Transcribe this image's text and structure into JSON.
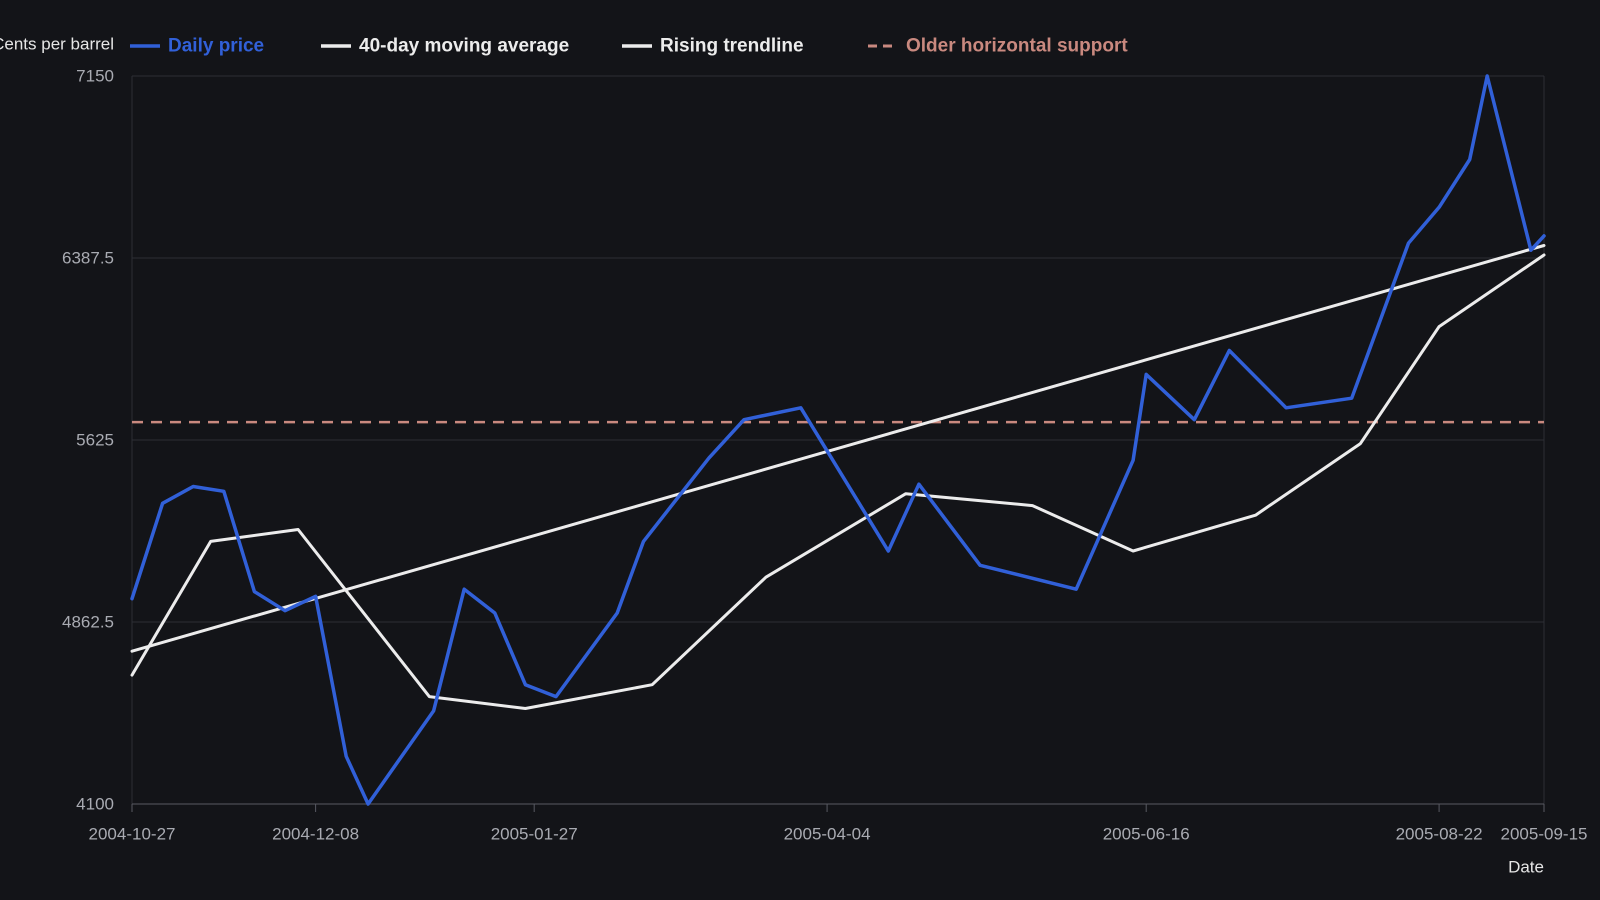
{
  "chart_data": {
    "type": "line",
    "title": "",
    "xlabel": "Date",
    "ylabel": "Cents per barrel",
    "ylim": [
      4100,
      7150
    ],
    "y_ticks": [
      "4100",
      "4862.5",
      "5625",
      "6387.5",
      "7150"
    ],
    "x_ticks": [
      {
        "date": "2004-10-27",
        "label": "2004-10-27"
      },
      {
        "date": "2004-12-08",
        "label": "2004-12-08"
      },
      {
        "date": "2005-01-27",
        "label": "2005-01-27"
      },
      {
        "date": "2005-04-04",
        "label": "2005-04-04"
      },
      {
        "date": "2005-06-16",
        "label": "2005-06-16"
      },
      {
        "date": "2005-08-22",
        "label": "2005-08-22"
      },
      {
        "date": "2005-09-15",
        "label": "2005-09-15"
      }
    ],
    "xlim": [
      "2004-10-27",
      "2005-09-15"
    ],
    "grid": true,
    "legend_position": "top",
    "series": [
      {
        "name": "Daily price",
        "color": "#3160d8",
        "style": "solid",
        "points": [
          {
            "x": "2004-10-27",
            "y": 4960
          },
          {
            "x": "2004-11-03",
            "y": 5360
          },
          {
            "x": "2004-11-10",
            "y": 5430
          },
          {
            "x": "2004-11-17",
            "y": 5410
          },
          {
            "x": "2004-11-24",
            "y": 4990
          },
          {
            "x": "2004-12-01",
            "y": 4910
          },
          {
            "x": "2004-12-08",
            "y": 4970
          },
          {
            "x": "2004-12-15",
            "y": 4300
          },
          {
            "x": "2004-12-20",
            "y": 4100
          },
          {
            "x": "2005-01-04",
            "y": 4490
          },
          {
            "x": "2005-01-11",
            "y": 5000
          },
          {
            "x": "2005-01-18",
            "y": 4900
          },
          {
            "x": "2005-01-25",
            "y": 4600
          },
          {
            "x": "2005-02-01",
            "y": 4550
          },
          {
            "x": "2005-02-15",
            "y": 4900
          },
          {
            "x": "2005-02-21",
            "y": 5200
          },
          {
            "x": "2005-03-08",
            "y": 5550
          },
          {
            "x": "2005-03-16",
            "y": 5710
          },
          {
            "x": "2005-03-29",
            "y": 5760
          },
          {
            "x": "2005-04-18",
            "y": 5160
          },
          {
            "x": "2005-04-25",
            "y": 5440
          },
          {
            "x": "2005-05-09",
            "y": 5100
          },
          {
            "x": "2005-05-31",
            "y": 5000
          },
          {
            "x": "2005-06-13",
            "y": 5540
          },
          {
            "x": "2005-06-16",
            "y": 5900
          },
          {
            "x": "2005-06-27",
            "y": 5710
          },
          {
            "x": "2005-07-05",
            "y": 6000
          },
          {
            "x": "2005-07-18",
            "y": 5760
          },
          {
            "x": "2005-08-02",
            "y": 5800
          },
          {
            "x": "2005-08-15",
            "y": 6450
          },
          {
            "x": "2005-08-22",
            "y": 6600
          },
          {
            "x": "2005-08-29",
            "y": 6800
          },
          {
            "x": "2005-09-02",
            "y": 7150
          },
          {
            "x": "2005-09-12",
            "y": 6420
          },
          {
            "x": "2005-09-15",
            "y": 6480
          }
        ]
      },
      {
        "name": "40-day moving average",
        "color": "#ececec",
        "style": "solid",
        "points": [
          {
            "x": "2004-10-27",
            "y": 4640
          },
          {
            "x": "2004-11-14",
            "y": 5200
          },
          {
            "x": "2004-12-04",
            "y": 5250
          },
          {
            "x": "2005-01-03",
            "y": 4550
          },
          {
            "x": "2005-01-25",
            "y": 4500
          },
          {
            "x": "2005-02-23",
            "y": 4600
          },
          {
            "x": "2005-03-21",
            "y": 5050
          },
          {
            "x": "2005-04-22",
            "y": 5400
          },
          {
            "x": "2005-05-21",
            "y": 5350
          },
          {
            "x": "2005-06-13",
            "y": 5160
          },
          {
            "x": "2005-07-11",
            "y": 5310
          },
          {
            "x": "2005-08-04",
            "y": 5610
          },
          {
            "x": "2005-08-22",
            "y": 6100
          },
          {
            "x": "2005-09-15",
            "y": 6400
          }
        ]
      },
      {
        "name": "Rising trendline",
        "color": "#ececec",
        "style": "solid",
        "points": [
          {
            "x": "2004-10-27",
            "y": 4740
          },
          {
            "x": "2005-09-15",
            "y": 6440
          }
        ]
      },
      {
        "name": "Older horizontal support",
        "color": "#c9897f",
        "style": "dashed",
        "points": [
          {
            "x": "2004-10-27",
            "y": 5700
          },
          {
            "x": "2005-09-15",
            "y": 5700
          }
        ]
      }
    ]
  }
}
